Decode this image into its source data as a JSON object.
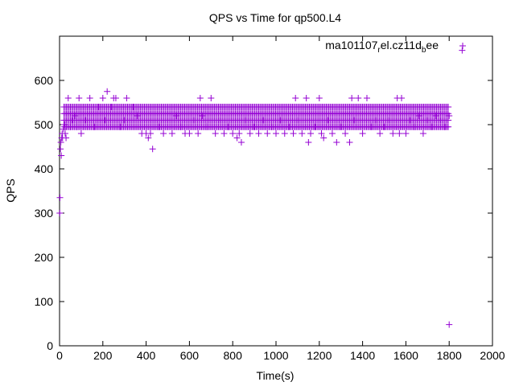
{
  "chart_data": {
    "type": "scatter",
    "title": "QPS vs Time for qp500.L4",
    "xlabel": "Time(s)",
    "ylabel": "QPS",
    "xlim": [
      0,
      2000
    ],
    "ylim": [
      0,
      700
    ],
    "xticks": [
      0,
      200,
      400,
      600,
      800,
      1000,
      1200,
      1400,
      1600,
      1800,
      2000
    ],
    "yticks": [
      0,
      100,
      200,
      300,
      400,
      500,
      600
    ],
    "grid": false,
    "legend_position": "top-right",
    "marker": "plus",
    "series": [
      {
        "name_parts": [
          "ma101107",
          "r",
          "el.cz11d",
          "b",
          "ee"
        ],
        "color": "#9400d3",
        "points": [
          [
            1,
            300
          ],
          [
            2,
            335
          ],
          [
            4,
            445
          ],
          [
            6,
            460
          ],
          [
            8,
            430
          ],
          [
            10,
            470
          ],
          [
            12,
            480
          ],
          [
            14,
            470
          ],
          [
            18,
            490
          ],
          [
            22,
            500
          ],
          [
            26,
            480
          ],
          [
            30,
            470
          ],
          [
            40,
            560
          ],
          [
            50,
            495
          ],
          [
            60,
            510
          ],
          [
            70,
            520
          ],
          [
            80,
            495
          ],
          [
            90,
            560
          ],
          [
            100,
            480
          ],
          [
            120,
            510
          ],
          [
            140,
            560
          ],
          [
            160,
            495
          ],
          [
            180,
            540
          ],
          [
            200,
            560
          ],
          [
            210,
            510
          ],
          [
            220,
            575
          ],
          [
            240,
            540
          ],
          [
            250,
            560
          ],
          [
            260,
            560
          ],
          [
            280,
            495
          ],
          [
            300,
            510
          ],
          [
            310,
            560
          ],
          [
            340,
            540
          ],
          [
            360,
            520
          ],
          [
            380,
            480
          ],
          [
            400,
            480
          ],
          [
            410,
            470
          ],
          [
            420,
            480
          ],
          [
            430,
            445
          ],
          [
            460,
            495
          ],
          [
            480,
            480
          ],
          [
            500,
            510
          ],
          [
            520,
            480
          ],
          [
            540,
            520
          ],
          [
            560,
            495
          ],
          [
            580,
            480
          ],
          [
            600,
            480
          ],
          [
            620,
            510
          ],
          [
            640,
            480
          ],
          [
            650,
            560
          ],
          [
            660,
            520
          ],
          [
            680,
            495
          ],
          [
            700,
            560
          ],
          [
            720,
            480
          ],
          [
            740,
            510
          ],
          [
            760,
            480
          ],
          [
            780,
            495
          ],
          [
            800,
            480
          ],
          [
            820,
            470
          ],
          [
            830,
            480
          ],
          [
            840,
            460
          ],
          [
            860,
            510
          ],
          [
            880,
            480
          ],
          [
            900,
            495
          ],
          [
            920,
            480
          ],
          [
            940,
            510
          ],
          [
            960,
            480
          ],
          [
            980,
            495
          ],
          [
            1000,
            480
          ],
          [
            1020,
            510
          ],
          [
            1040,
            480
          ],
          [
            1060,
            495
          ],
          [
            1080,
            480
          ],
          [
            1090,
            560
          ],
          [
            1100,
            510
          ],
          [
            1120,
            480
          ],
          [
            1140,
            560
          ],
          [
            1150,
            460
          ],
          [
            1160,
            480
          ],
          [
            1180,
            495
          ],
          [
            1200,
            560
          ],
          [
            1210,
            480
          ],
          [
            1220,
            470
          ],
          [
            1240,
            510
          ],
          [
            1260,
            480
          ],
          [
            1280,
            460
          ],
          [
            1300,
            495
          ],
          [
            1320,
            480
          ],
          [
            1340,
            460
          ],
          [
            1350,
            560
          ],
          [
            1360,
            510
          ],
          [
            1380,
            560
          ],
          [
            1400,
            480
          ],
          [
            1420,
            560
          ],
          [
            1440,
            495
          ],
          [
            1460,
            510
          ],
          [
            1480,
            480
          ],
          [
            1500,
            495
          ],
          [
            1520,
            510
          ],
          [
            1540,
            480
          ],
          [
            1560,
            560
          ],
          [
            1570,
            480
          ],
          [
            1580,
            560
          ],
          [
            1600,
            480
          ],
          [
            1620,
            510
          ],
          [
            1640,
            495
          ],
          [
            1660,
            520
          ],
          [
            1680,
            480
          ],
          [
            1700,
            510
          ],
          [
            1720,
            495
          ],
          [
            1740,
            520
          ],
          [
            1760,
            510
          ],
          [
            1780,
            495
          ],
          [
            1800,
            520
          ],
          [
            1800,
            48
          ],
          [
            1860,
            668
          ]
        ],
        "band_values": [
          495,
          510,
          525,
          540
        ],
        "band_x_range": [
          20,
          1800
        ]
      }
    ]
  }
}
